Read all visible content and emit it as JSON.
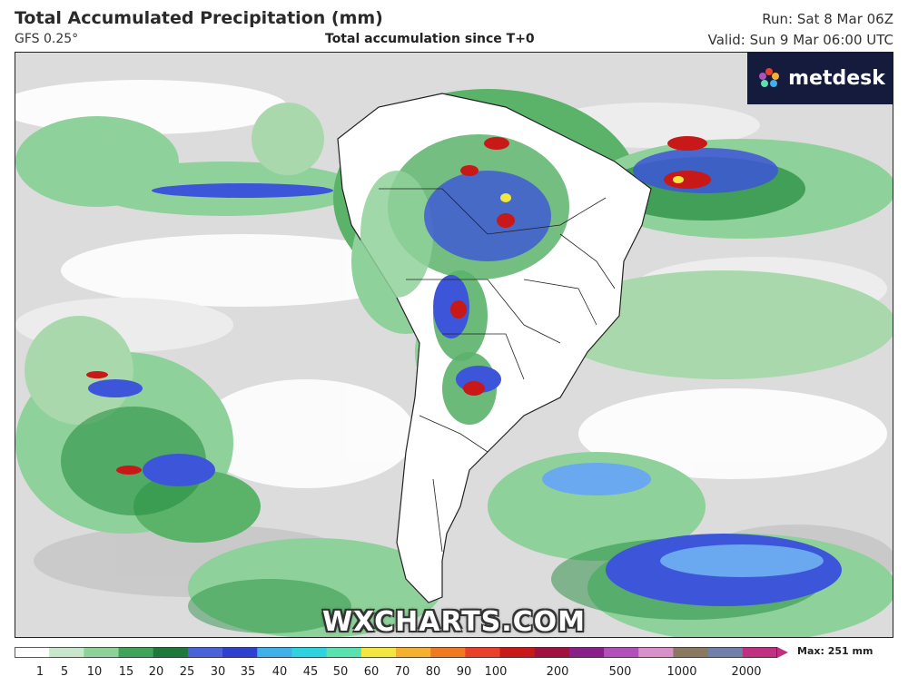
{
  "header": {
    "title": "Total Accumulated Precipitation (mm)",
    "model": "GFS 0.25°",
    "subtitle": "Total accumulation since T+0",
    "run": "Run: Sat 8 Mar 06Z",
    "valid": "Valid: Sun 9 Mar 06:00 UTC"
  },
  "logo": {
    "text": "metdesk",
    "icon": "pinwheel-icon"
  },
  "watermark": "WXCHARTS.COM",
  "colorbar": {
    "max_label": "Max: 251 mm",
    "ticks": [
      "1",
      "5",
      "10",
      "15",
      "20",
      "25",
      "30",
      "35",
      "40",
      "45",
      "50",
      "60",
      "70",
      "80",
      "90",
      "100",
      "200",
      "500",
      "1000",
      "2000"
    ],
    "colors": [
      "#ffffff",
      "#c8e6c9",
      "#8fd19a",
      "#3fa35a",
      "#1e7a3a",
      "#4b63d8",
      "#2f3fd0",
      "#3fb0e8",
      "#2fd3e0",
      "#5be0b0",
      "#f2e640",
      "#f6b030",
      "#f07a24",
      "#e8402a",
      "#c81818",
      "#a01040",
      "#8a1f8a",
      "#b050b8",
      "#d890c8",
      "#8a7860",
      "#7080a8",
      "#c03080"
    ]
  },
  "colors": {
    "land": "#ffffff",
    "ocean_light": "#d6d6d6",
    "ocean_mid": "#b6b6b6",
    "green_light": "#a9d8ac",
    "green_mid": "#5bb36a",
    "green_dark": "#1f8a3c",
    "blue": "#3d55d8",
    "light_blue": "#6aa8f0",
    "red": "#c81818",
    "yellow": "#f2e640"
  }
}
